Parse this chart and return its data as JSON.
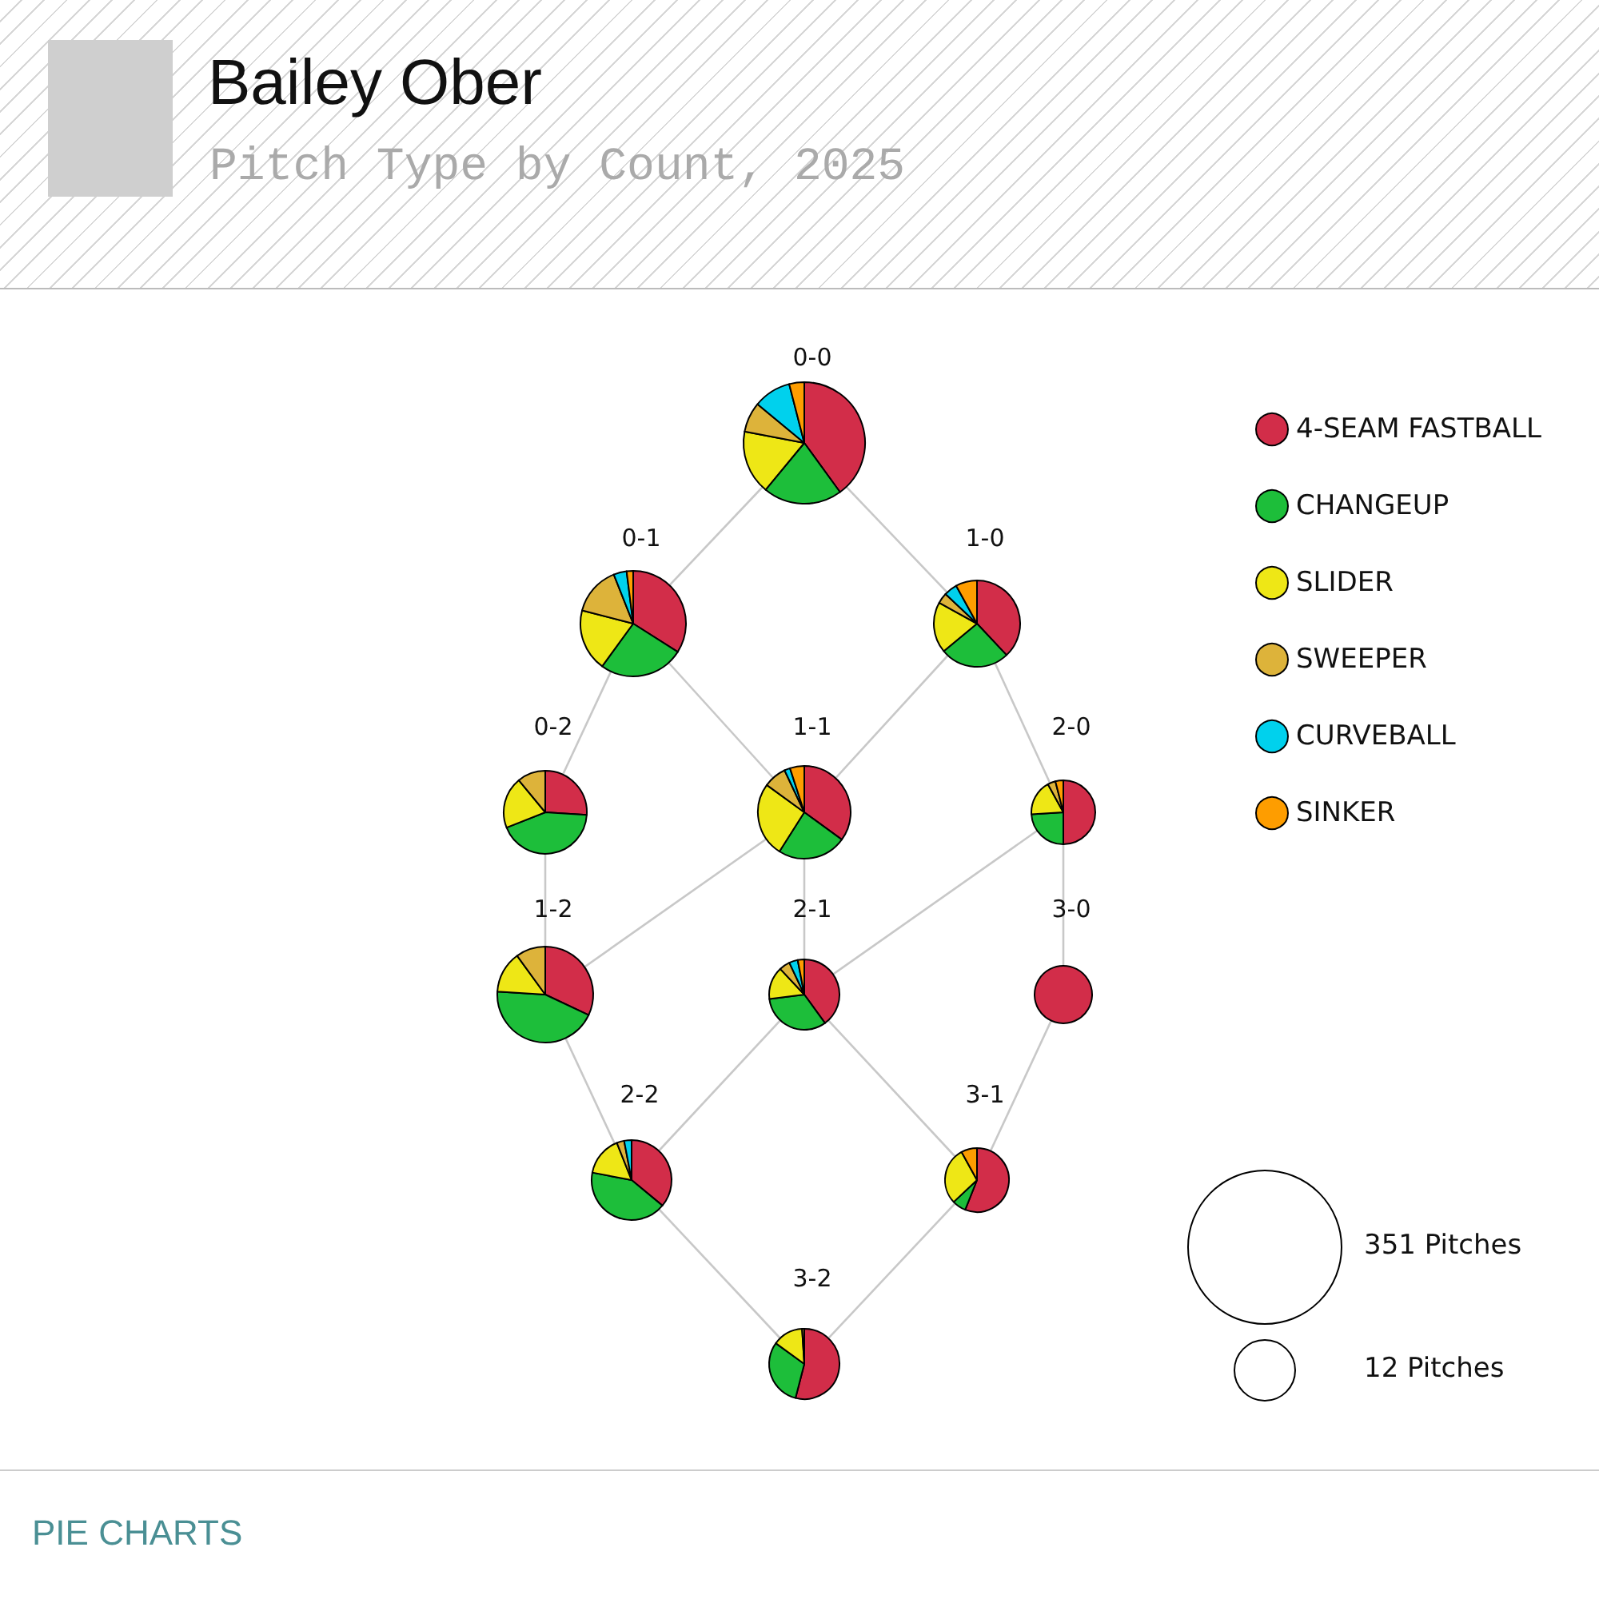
{
  "chart_data": [
    {
      "type": "other",
      "title": "Bailey Ober",
      "subtitle": "Pitch Type by Count, 2025",
      "annotations": [
        "PIE CHARTS"
      ]
    },
    {
      "type": "pie",
      "title": "0-0",
      "legend": "right",
      "categories": [
        "4-SEAM FASTBALL",
        "CHANGEUP",
        "SLIDER",
        "SWEEPER",
        "CURVEBALL",
        "SINKER"
      ],
      "colors": [
        "#d22d49",
        "#1dbe3a",
        "#eee716",
        "#ddb33a",
        "#00d1ed",
        "#fe9d00"
      ],
      "values": [
        40,
        21,
        17,
        8,
        10,
        4
      ]
    },
    {
      "type": "pie",
      "title": "0-1",
      "categories": [
        null,
        null,
        null,
        null,
        null,
        null
      ],
      "colors": [
        "#d22d49",
        "#1dbe3a",
        "#eee716",
        "#ddb33a",
        "#00d1ed",
        "#fe9d00"
      ],
      "values": [
        34,
        26,
        19,
        15,
        4,
        2
      ]
    },
    {
      "type": "pie",
      "title": "1-0",
      "categories": [
        null,
        null,
        null,
        null,
        null,
        null
      ],
      "colors": [
        "#d22d49",
        "#1dbe3a",
        "#eee716",
        "#ddb33a",
        "#00d1ed",
        "#fe9d00"
      ],
      "values": [
        38,
        26,
        19,
        4,
        5,
        8
      ]
    },
    {
      "type": "pie",
      "title": "0-2",
      "categories": [
        null,
        null,
        null,
        null
      ],
      "colors": [
        "#d22d49",
        "#1dbe3a",
        "#eee716",
        "#ddb33a"
      ],
      "values": [
        26,
        43,
        20,
        11
      ]
    },
    {
      "type": "pie",
      "title": "1-1",
      "categories": [
        null,
        null,
        null,
        null,
        null,
        null
      ],
      "colors": [
        "#d22d49",
        "#1dbe3a",
        "#eee716",
        "#ddb33a",
        "#00d1ed",
        "#fe9d00"
      ],
      "values": [
        35,
        24,
        26,
        8,
        2,
        5
      ]
    },
    {
      "type": "pie",
      "title": "2-0",
      "categories": [
        null,
        null,
        null,
        null,
        null
      ],
      "colors": [
        "#d22d49",
        "#1dbe3a",
        "#eee716",
        "#ddb33a",
        "#fe9d00"
      ],
      "values": [
        50,
        24,
        18,
        4,
        4
      ]
    },
    {
      "type": "pie",
      "title": "1-2",
      "categories": [
        null,
        null,
        null,
        null
      ],
      "colors": [
        "#d22d49",
        "#1dbe3a",
        "#eee716",
        "#ddb33a"
      ],
      "values": [
        32,
        44,
        14,
        10
      ]
    },
    {
      "type": "pie",
      "title": "2-1",
      "categories": [
        null,
        null,
        null,
        null,
        null,
        null
      ],
      "colors": [
        "#d22d49",
        "#1dbe3a",
        "#eee716",
        "#ddb33a",
        "#00d1ed",
        "#fe9d00"
      ],
      "values": [
        40,
        33,
        15,
        5,
        4,
        3
      ]
    },
    {
      "type": "pie",
      "title": "3-0",
      "categories": [
        null
      ],
      "colors": [
        "#d22d49"
      ],
      "values": [
        100
      ]
    },
    {
      "type": "pie",
      "title": "2-2",
      "categories": [
        null,
        null,
        null,
        null,
        null
      ],
      "colors": [
        "#d22d49",
        "#1dbe3a",
        "#eee716",
        "#ddb33a",
        "#00d1ed"
      ],
      "values": [
        36,
        42,
        16,
        3,
        3
      ]
    },
    {
      "type": "pie",
      "title": "3-1",
      "categories": [
        null,
        null,
        null,
        null
      ],
      "colors": [
        "#d22d49",
        "#1dbe3a",
        "#eee716",
        "#fe9d00"
      ],
      "values": [
        56,
        7,
        29,
        8
      ]
    },
    {
      "type": "pie",
      "title": "3-2",
      "categories": [
        null,
        null,
        null,
        null
      ],
      "colors": [
        "#d22d49",
        "#1dbe3a",
        "#eee716",
        "#ddb33a"
      ],
      "values": [
        54,
        31,
        14,
        1
      ]
    },
    {
      "type": "other",
      "annotations": [
        "351 Pitches",
        "12 Pitches"
      ]
    }
  ]
}
